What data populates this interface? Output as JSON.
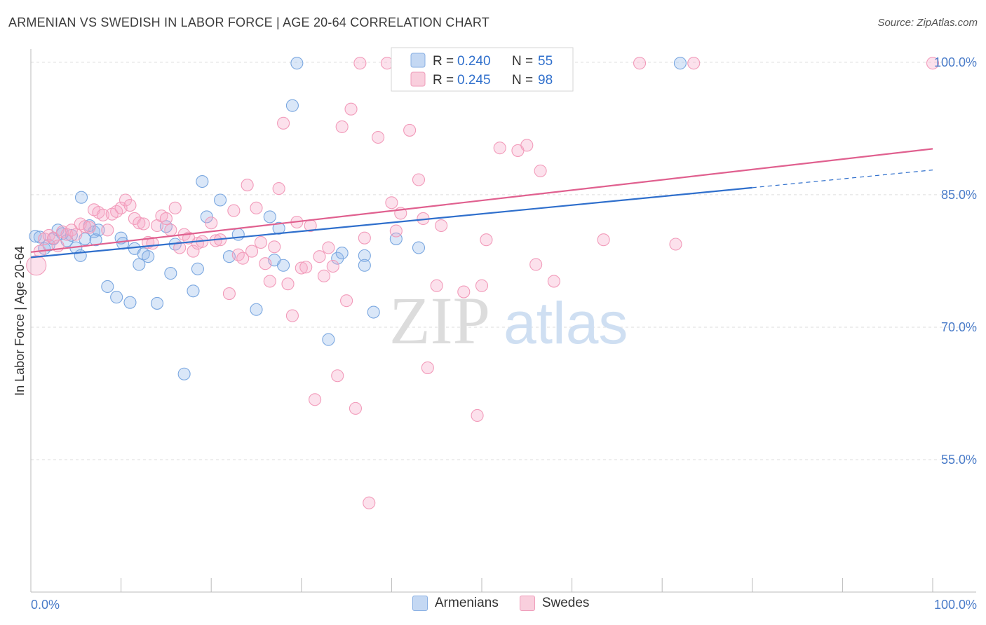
{
  "header": {
    "title": "ARMENIAN VS SWEDISH IN LABOR FORCE | AGE 20-64 CORRELATION CHART",
    "source": "Source: ZipAtlas.com"
  },
  "watermark": {
    "zip": "ZIP",
    "atlas": "atlas"
  },
  "legend_top": [
    {
      "r_label": "R =",
      "r_value": "0.240",
      "n_label": "N =",
      "n_value": "55"
    },
    {
      "r_label": "R =",
      "r_value": "0.245",
      "n_label": "N =",
      "n_value": "98"
    }
  ],
  "chart_data": {
    "type": "scatter",
    "title": "ARMENIAN VS SWEDISH IN LABOR FORCE | AGE 20-64 CORRELATION CHART",
    "ylabel": "In Labor Force | Age 20-64",
    "xlabel": "",
    "xlim": [
      0,
      100
    ],
    "ylim": [
      40,
      101.5
    ],
    "x_tick_labels": [
      "0.0%",
      "100.0%"
    ],
    "y_ticks": [
      55,
      70,
      85,
      100
    ],
    "y_tick_labels": [
      "55.0%",
      "70.0%",
      "85.0%",
      "100.0%"
    ],
    "grid": true,
    "legend_position": "top-center",
    "series": [
      {
        "name": "Armenians",
        "color": "#7aa7e0",
        "line_color": "#2f6fcc",
        "r": 0.24,
        "n": 55,
        "trend": {
          "x0": 0,
          "y0": 77.9,
          "x1": 80,
          "y1": 85.8,
          "dashed_to_x": 100,
          "dashed_to_y": 87.8
        },
        "points": [
          [
            0.5,
            80.3
          ],
          [
            1,
            80.2
          ],
          [
            1.5,
            78.9
          ],
          [
            2,
            79.3
          ],
          [
            2.5,
            80.0
          ],
          [
            3,
            81.0
          ],
          [
            3.5,
            80.6
          ],
          [
            4,
            79.8
          ],
          [
            4.5,
            80.4
          ],
          [
            5,
            79.0
          ],
          [
            5.5,
            78.1
          ],
          [
            6,
            80.0
          ],
          [
            6.5,
            81.5
          ],
          [
            7,
            80.8
          ],
          [
            5.6,
            84.7
          ],
          [
            7.2,
            79.9
          ],
          [
            7.5,
            81.0
          ],
          [
            8.5,
            74.6
          ],
          [
            9.5,
            73.4
          ],
          [
            10,
            80.1
          ],
          [
            10.2,
            79.5
          ],
          [
            11,
            72.8
          ],
          [
            11.5,
            78.9
          ],
          [
            12,
            77.1
          ],
          [
            12.5,
            78.3
          ],
          [
            13,
            78.0
          ],
          [
            14,
            72.7
          ],
          [
            15,
            81.4
          ],
          [
            15.5,
            76.1
          ],
          [
            16,
            79.4
          ],
          [
            17,
            64.7
          ],
          [
            18,
            74.1
          ],
          [
            18.5,
            76.6
          ],
          [
            19,
            86.5
          ],
          [
            19.5,
            82.5
          ],
          [
            21,
            84.4
          ],
          [
            22,
            78.0
          ],
          [
            23,
            80.5
          ],
          [
            25,
            72.0
          ],
          [
            26.5,
            82.5
          ],
          [
            27,
            77.6
          ],
          [
            27.5,
            81.2
          ],
          [
            28,
            77.0
          ],
          [
            29,
            95.1
          ],
          [
            29.5,
            99.9
          ],
          [
            33,
            68.6
          ],
          [
            34,
            77.8
          ],
          [
            34.5,
            78.4
          ],
          [
            37,
            78.1
          ],
          [
            37,
            77.0
          ],
          [
            38,
            71.7
          ],
          [
            40.5,
            80.0
          ],
          [
            43,
            79.0
          ],
          [
            43.5,
            99.9
          ],
          [
            72,
            99.9
          ]
        ]
      },
      {
        "name": "Swedes",
        "color": "#f29bba",
        "line_color": "#e0608f",
        "r": 0.245,
        "n": 98,
        "trend": {
          "x0": 0,
          "y0": 78.5,
          "x1": 100,
          "y1": 90.2
        },
        "points": [
          [
            0.6,
            77.0
          ],
          [
            1,
            78.6
          ],
          [
            1.5,
            80.0
          ],
          [
            2,
            80.4
          ],
          [
            2.5,
            80.1
          ],
          [
            3,
            79.2
          ],
          [
            3.5,
            80.8
          ],
          [
            4,
            80.5
          ],
          [
            4.5,
            81.0
          ],
          [
            5,
            80.5
          ],
          [
            5.5,
            81.7
          ],
          [
            6,
            81.4
          ],
          [
            6.5,
            81.3
          ],
          [
            7,
            83.3
          ],
          [
            7.5,
            83.0
          ],
          [
            8,
            82.7
          ],
          [
            8.5,
            81.0
          ],
          [
            9,
            82.8
          ],
          [
            9.5,
            83.1
          ],
          [
            10,
            83.5
          ],
          [
            10.5,
            84.4
          ],
          [
            11,
            83.8
          ],
          [
            11.5,
            82.3
          ],
          [
            12,
            81.8
          ],
          [
            12.5,
            81.7
          ],
          [
            13,
            79.6
          ],
          [
            13.5,
            79.5
          ],
          [
            14,
            81.5
          ],
          [
            14.5,
            82.6
          ],
          [
            15,
            82.3
          ],
          [
            15.5,
            81.0
          ],
          [
            16,
            83.5
          ],
          [
            16.5,
            79.0
          ],
          [
            17,
            80.5
          ],
          [
            17.5,
            80.1
          ],
          [
            18,
            78.6
          ],
          [
            18.5,
            79.5
          ],
          [
            19,
            79.7
          ],
          [
            20,
            81.8
          ],
          [
            20.5,
            79.8
          ],
          [
            21,
            79.9
          ],
          [
            22,
            73.8
          ],
          [
            22.5,
            83.2
          ],
          [
            23,
            78.2
          ],
          [
            23.5,
            77.8
          ],
          [
            24,
            86.1
          ],
          [
            24.5,
            78.6
          ],
          [
            25,
            83.5
          ],
          [
            25.5,
            79.6
          ],
          [
            26,
            77.2
          ],
          [
            26.5,
            75.2
          ],
          [
            27,
            79.1
          ],
          [
            27.5,
            85.7
          ],
          [
            28,
            93.1
          ],
          [
            28.5,
            74.9
          ],
          [
            29,
            71.3
          ],
          [
            29.5,
            81.9
          ],
          [
            30,
            76.7
          ],
          [
            30.5,
            76.8
          ],
          [
            31,
            81.5
          ],
          [
            31.5,
            61.8
          ],
          [
            32,
            78.0
          ],
          [
            32.5,
            75.8
          ],
          [
            33,
            79.0
          ],
          [
            33.5,
            76.9
          ],
          [
            34,
            64.5
          ],
          [
            34.5,
            92.7
          ],
          [
            35,
            73.0
          ],
          [
            35.5,
            94.7
          ],
          [
            36,
            60.8
          ],
          [
            36.5,
            99.9
          ],
          [
            37,
            80.1
          ],
          [
            37.5,
            50.1
          ],
          [
            38.5,
            91.5
          ],
          [
            39.5,
            99.9
          ],
          [
            40,
            84.1
          ],
          [
            40.5,
            80.9
          ],
          [
            41,
            82.9
          ],
          [
            42,
            92.3
          ],
          [
            43,
            86.7
          ],
          [
            43.5,
            82.3
          ],
          [
            44,
            65.4
          ],
          [
            45,
            74.7
          ],
          [
            45.5,
            81.5
          ],
          [
            46,
            99.9
          ],
          [
            48,
            74.0
          ],
          [
            49.5,
            60.0
          ],
          [
            50,
            74.7
          ],
          [
            50.5,
            79.9
          ],
          [
            52,
            90.3
          ],
          [
            54,
            90.0
          ],
          [
            55,
            90.6
          ],
          [
            56,
            77.1
          ],
          [
            56.5,
            87.7
          ],
          [
            58,
            75.2
          ],
          [
            63.5,
            79.9
          ],
          [
            67.5,
            99.9
          ],
          [
            71.5,
            79.4
          ],
          [
            73.5,
            99.9
          ],
          [
            100,
            99.9
          ]
        ]
      }
    ]
  }
}
